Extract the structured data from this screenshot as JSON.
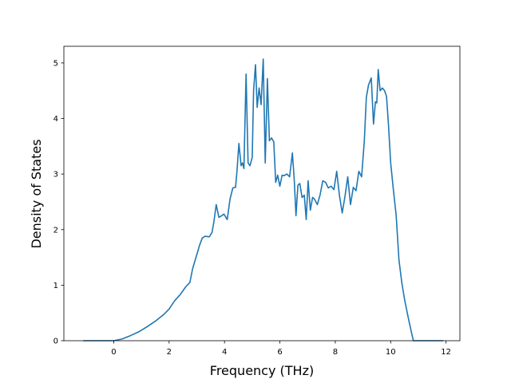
{
  "chart_data": {
    "type": "line",
    "title": "",
    "xlabel": "Frequency (THz)",
    "ylabel": "Density of States",
    "xlim": [
      -1.8,
      12.5
    ],
    "ylim": [
      0,
      5.3
    ],
    "xticks": [
      0,
      2,
      4,
      6,
      8,
      10,
      12
    ],
    "yticks": [
      0,
      1,
      2,
      3,
      4,
      5
    ],
    "xtick_labels": [
      "0",
      "2",
      "4",
      "6",
      "8",
      "10",
      "12"
    ],
    "ytick_labels": [
      "0",
      "1",
      "2",
      "3",
      "4",
      "5"
    ],
    "grid": false,
    "legend": "none",
    "line_color": "#1f77b4",
    "series": [
      {
        "x": [
          -1.1,
          -0.5,
          0.0,
          0.3,
          0.6,
          0.9,
          1.2,
          1.5,
          1.8,
          2.0,
          2.2,
          2.4,
          2.6,
          2.75,
          2.85,
          3.0,
          3.1,
          3.2,
          3.3,
          3.45,
          3.55,
          3.62,
          3.7,
          3.8,
          3.9,
          3.98,
          4.1,
          4.2,
          4.3,
          4.4,
          4.45,
          4.52,
          4.6,
          4.65,
          4.7,
          4.78,
          4.85,
          4.92,
          5.0,
          5.05,
          5.12,
          5.18,
          5.25,
          5.32,
          5.4,
          5.47,
          5.55,
          5.62,
          5.7,
          5.78,
          5.85,
          5.92,
          6.0,
          6.08,
          6.15,
          6.25,
          6.35,
          6.45,
          6.52,
          6.58,
          6.65,
          6.72,
          6.8,
          6.88,
          6.95,
          7.02,
          7.1,
          7.18,
          7.25,
          7.35,
          7.45,
          7.55,
          7.65,
          7.75,
          7.85,
          7.95,
          8.05,
          8.15,
          8.25,
          8.35,
          8.45,
          8.55,
          8.65,
          8.75,
          8.85,
          8.95,
          9.05,
          9.12,
          9.2,
          9.3,
          9.38,
          9.45,
          9.5,
          9.55,
          9.62,
          9.7,
          9.78,
          9.85,
          9.92,
          10.0,
          10.1,
          10.2,
          10.3,
          10.4,
          10.5,
          10.62,
          10.75,
          10.82,
          11.0,
          11.5,
          11.9
        ],
        "y": [
          0.0,
          0.0,
          0.0,
          0.03,
          0.09,
          0.16,
          0.25,
          0.35,
          0.47,
          0.57,
          0.72,
          0.83,
          0.97,
          1.05,
          1.3,
          1.55,
          1.72,
          1.85,
          1.88,
          1.87,
          1.95,
          2.15,
          2.45,
          2.22,
          2.25,
          2.28,
          2.18,
          2.55,
          2.75,
          2.76,
          3.05,
          3.55,
          3.15,
          3.2,
          3.1,
          4.8,
          3.2,
          3.15,
          3.3,
          4.5,
          4.97,
          4.2,
          4.55,
          4.25,
          5.07,
          3.2,
          4.72,
          3.6,
          3.65,
          3.58,
          2.85,
          2.98,
          2.78,
          2.98,
          2.97,
          3.0,
          2.95,
          3.38,
          2.88,
          2.25,
          2.8,
          2.83,
          2.58,
          2.62,
          2.18,
          2.88,
          2.35,
          2.58,
          2.55,
          2.45,
          2.62,
          2.88,
          2.85,
          2.75,
          2.78,
          2.72,
          3.05,
          2.62,
          2.3,
          2.6,
          2.95,
          2.45,
          2.76,
          2.7,
          3.05,
          2.95,
          3.6,
          4.38,
          4.6,
          4.73,
          3.9,
          4.3,
          4.28,
          4.88,
          4.5,
          4.55,
          4.5,
          4.4,
          3.9,
          3.2,
          2.7,
          2.25,
          1.45,
          1.05,
          0.75,
          0.45,
          0.15,
          0.0,
          0.0,
          0.0,
          0.0
        ]
      }
    ]
  }
}
